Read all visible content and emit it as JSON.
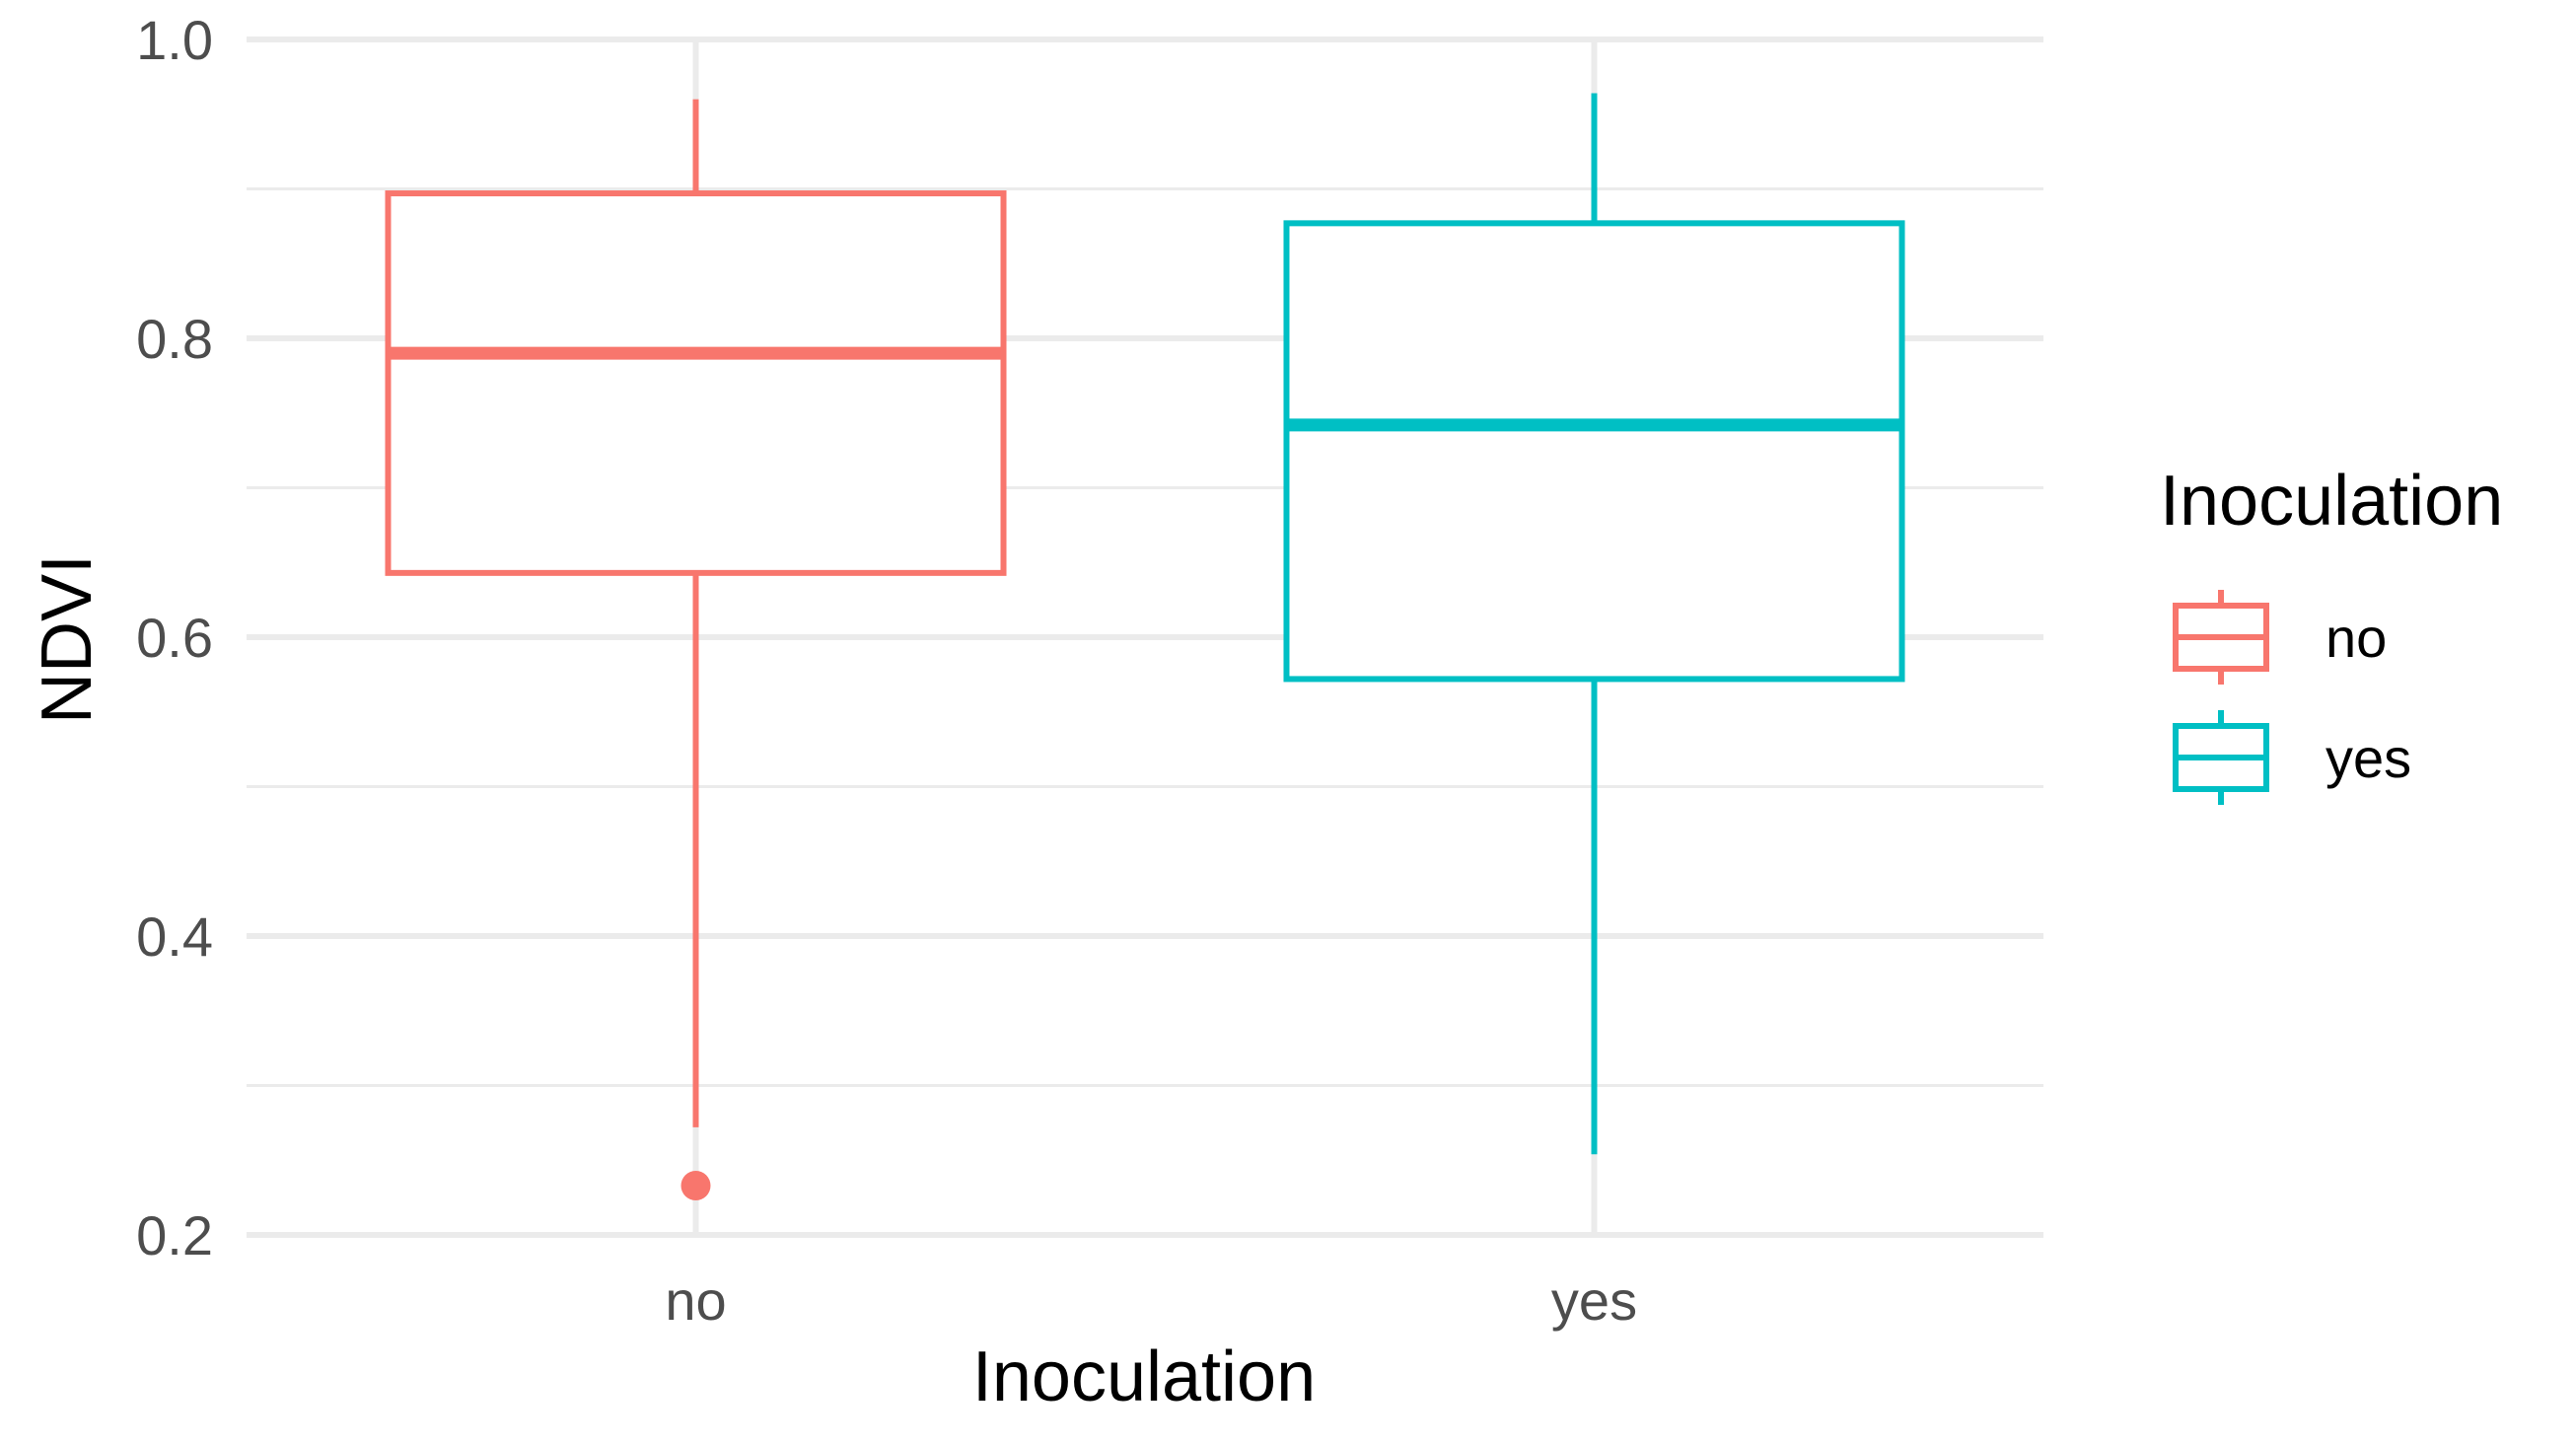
{
  "chart_data": {
    "type": "boxplot",
    "xlabel": "Inoculation",
    "ylabel": "NDVI",
    "ylim": [
      0.2,
      1.0
    ],
    "y_ticks": [
      "0.2",
      "0.4",
      "0.6",
      "0.8",
      "1.0"
    ],
    "categories": [
      "no",
      "yes"
    ],
    "grid": true,
    "legend": {
      "title": "Inoculation",
      "position": "right",
      "entries": [
        "no",
        "yes"
      ]
    },
    "series": [
      {
        "name": "no",
        "color": "#F8766D",
        "whisker_low": 0.272,
        "q1": 0.643,
        "median": 0.79,
        "q3": 0.897,
        "whisker_high": 0.96,
        "outliers": [
          0.233
        ]
      },
      {
        "name": "yes",
        "color": "#00BFC4",
        "whisker_low": 0.254,
        "q1": 0.572,
        "median": 0.742,
        "q3": 0.877,
        "whisker_high": 0.964,
        "outliers": []
      }
    ]
  }
}
